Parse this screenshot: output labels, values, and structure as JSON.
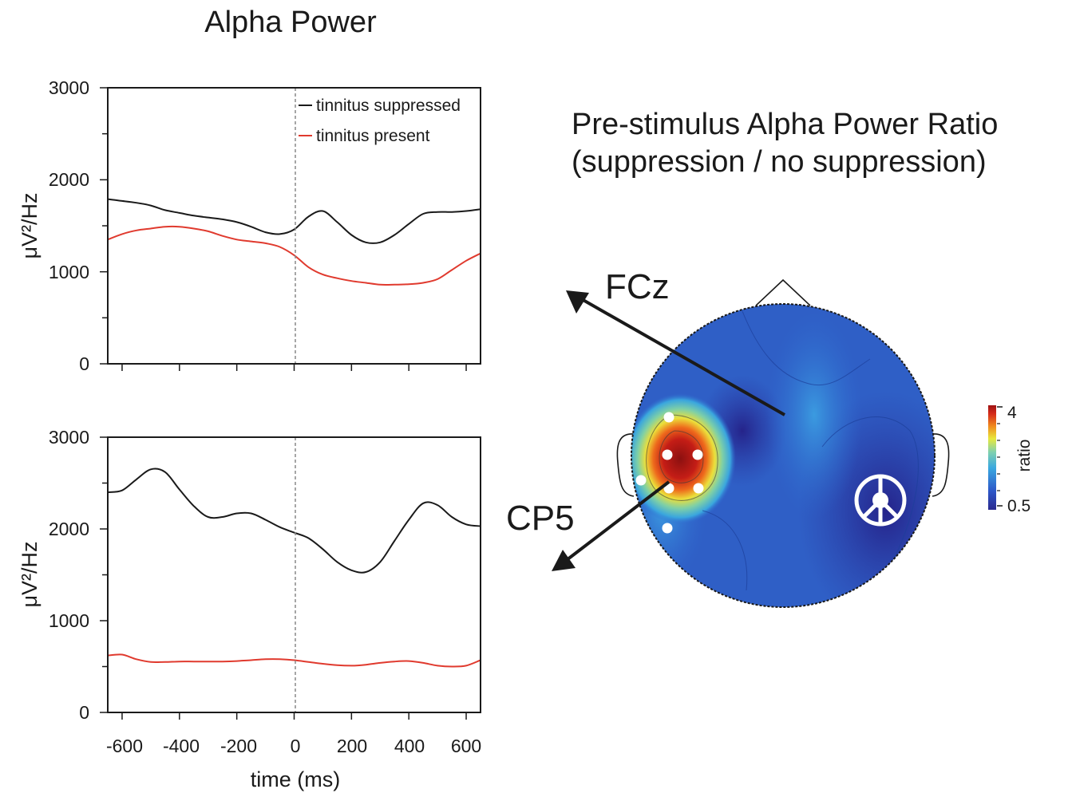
{
  "figure_title": "Alpha Power",
  "topomap": {
    "title_line1": "Pre-stimulus Alpha Power Ratio",
    "title_line2": "(suppression / no suppression)",
    "electrode_labels": [
      "FCz",
      "CP5"
    ],
    "colorbar": {
      "label": "ratio",
      "ticks": [
        "4",
        "0.5"
      ],
      "colors": [
        "#2b2a8f",
        "#2d57c8",
        "#3aa8e0",
        "#7fd0b0",
        "#e8e83c",
        "#f08a1e",
        "#d42a1a",
        "#9e1212"
      ]
    }
  },
  "colors": {
    "suppressed": "#1a1a1a",
    "present": "#e03a2e",
    "zero_line": "#888888"
  },
  "chart_data": [
    {
      "type": "line",
      "title": "",
      "xlabel": "",
      "ylabel": "μV²/Hz",
      "xlim": [
        -650,
        650
      ],
      "ylim": [
        0,
        3000
      ],
      "yticks": [
        0,
        1000,
        2000,
        3000
      ],
      "legend": "top-right",
      "vertical_marker_x": 0,
      "series": [
        {
          "name": "tinnitus suppressed",
          "color": "#1a1a1a",
          "x": [
            -650,
            -600,
            -550,
            -500,
            -450,
            -400,
            -350,
            -300,
            -250,
            -200,
            -150,
            -100,
            -50,
            0,
            50,
            100,
            150,
            200,
            250,
            300,
            350,
            400,
            450,
            500,
            550,
            600,
            650
          ],
          "y": [
            1790,
            1770,
            1750,
            1720,
            1670,
            1640,
            1610,
            1590,
            1570,
            1540,
            1490,
            1430,
            1410,
            1460,
            1600,
            1660,
            1540,
            1400,
            1320,
            1320,
            1400,
            1520,
            1630,
            1650,
            1650,
            1660,
            1680
          ]
        },
        {
          "name": "tinnitus present",
          "color": "#e03a2e",
          "x": [
            -650,
            -600,
            -550,
            -500,
            -450,
            -400,
            -350,
            -300,
            -250,
            -200,
            -150,
            -100,
            -50,
            0,
            50,
            100,
            150,
            200,
            250,
            300,
            350,
            400,
            450,
            500,
            550,
            600,
            650
          ],
          "y": [
            1350,
            1410,
            1450,
            1470,
            1490,
            1490,
            1470,
            1440,
            1390,
            1350,
            1330,
            1310,
            1270,
            1180,
            1050,
            970,
            930,
            900,
            880,
            860,
            860,
            865,
            880,
            920,
            1020,
            1120,
            1200
          ]
        }
      ]
    },
    {
      "type": "line",
      "title": "",
      "xlabel": "time (ms)",
      "ylabel": "μV²/Hz",
      "xlim": [
        -650,
        650
      ],
      "ylim": [
        0,
        3000
      ],
      "xticks": [
        -600,
        -400,
        -200,
        0,
        200,
        400,
        600
      ],
      "yticks": [
        0,
        1000,
        2000,
        3000
      ],
      "vertical_marker_x": 0,
      "series": [
        {
          "name": "tinnitus suppressed",
          "color": "#1a1a1a",
          "x": [
            -650,
            -600,
            -550,
            -500,
            -450,
            -400,
            -350,
            -300,
            -250,
            -200,
            -150,
            -100,
            -50,
            0,
            50,
            100,
            150,
            200,
            250,
            300,
            350,
            400,
            450,
            500,
            550,
            600,
            650
          ],
          "y": [
            2400,
            2420,
            2540,
            2650,
            2620,
            2430,
            2250,
            2130,
            2130,
            2170,
            2170,
            2100,
            2020,
            1960,
            1900,
            1780,
            1640,
            1550,
            1530,
            1640,
            1870,
            2100,
            2280,
            2260,
            2130,
            2050,
            2030
          ]
        },
        {
          "name": "tinnitus present",
          "color": "#e03a2e",
          "x": [
            -650,
            -600,
            -550,
            -500,
            -450,
            -400,
            -350,
            -300,
            -250,
            -200,
            -150,
            -100,
            -50,
            0,
            50,
            100,
            150,
            200,
            250,
            300,
            350,
            400,
            450,
            500,
            550,
            600,
            650
          ],
          "y": [
            620,
            630,
            580,
            550,
            550,
            555,
            555,
            555,
            555,
            560,
            570,
            580,
            580,
            570,
            550,
            530,
            515,
            510,
            520,
            540,
            555,
            560,
            540,
            510,
            500,
            510,
            570
          ]
        }
      ]
    }
  ]
}
